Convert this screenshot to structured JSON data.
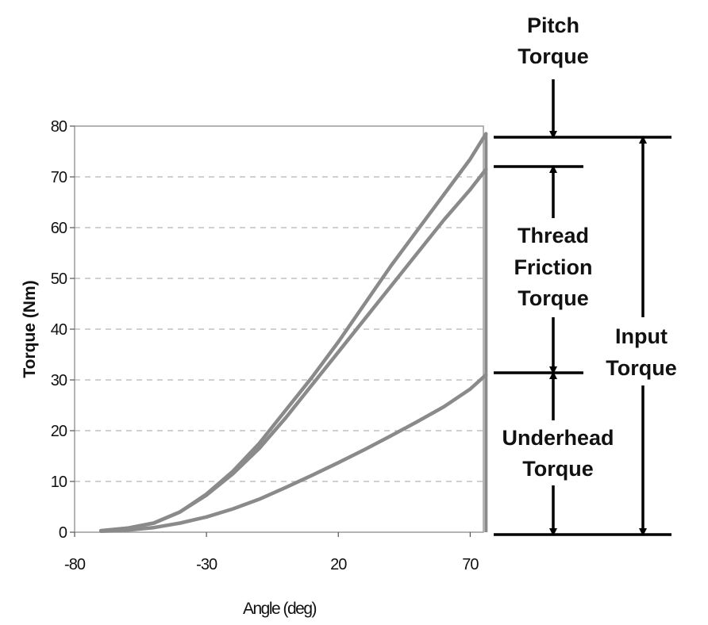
{
  "chart_data": {
    "type": "line",
    "title": "",
    "xlabel": "Angle (deg)",
    "ylabel": "Torque (Nm)",
    "xlim": [
      -80,
      75
    ],
    "ylim": [
      0,
      80
    ],
    "x_ticks": [
      -80,
      -30,
      20,
      70
    ],
    "y_ticks": [
      0,
      10,
      20,
      30,
      40,
      50,
      60,
      70,
      80
    ],
    "grid": "horizontal-dashed",
    "series": [
      {
        "color": "#8a8a8a",
        "x": [
          -70,
          -60,
          -50,
          -40,
          -30,
          -20,
          -10,
          0,
          10,
          20,
          30,
          40,
          50,
          60,
          70,
          76
        ],
        "y": [
          0.3,
          0.8,
          1.8,
          4,
          7.5,
          12,
          17.5,
          24,
          30.5,
          37.5,
          45,
          52.5,
          59.5,
          66.5,
          73.5,
          78.5
        ]
      },
      {
        "color": "#8a8a8a",
        "x": [
          -70,
          -60,
          -50,
          -40,
          -30,
          -20,
          -10,
          0,
          10,
          20,
          30,
          40,
          50,
          60,
          70,
          76
        ],
        "y": [
          0.3,
          0.8,
          1.8,
          4,
          7.3,
          11.5,
          16.5,
          22.5,
          29,
          35.5,
          42,
          48.5,
          55,
          61.5,
          67.5,
          71.5
        ]
      },
      {
        "color": "#8a8a8a",
        "x": [
          -70,
          -60,
          -50,
          -40,
          -30,
          -20,
          -10,
          0,
          10,
          20,
          30,
          40,
          50,
          60,
          70,
          76
        ],
        "y": [
          0.2,
          0.4,
          0.9,
          1.8,
          3,
          4.6,
          6.5,
          8.8,
          11.2,
          13.7,
          16.3,
          19,
          21.8,
          24.7,
          28.2,
          31
        ]
      }
    ],
    "annotations": {
      "pitch": [
        "Pitch",
        "Torque"
      ],
      "thread": [
        "Thread",
        "Friction",
        "Torque"
      ],
      "underhead": [
        "Underhead",
        "Torque"
      ],
      "input": [
        "Input",
        "Torque"
      ]
    }
  }
}
